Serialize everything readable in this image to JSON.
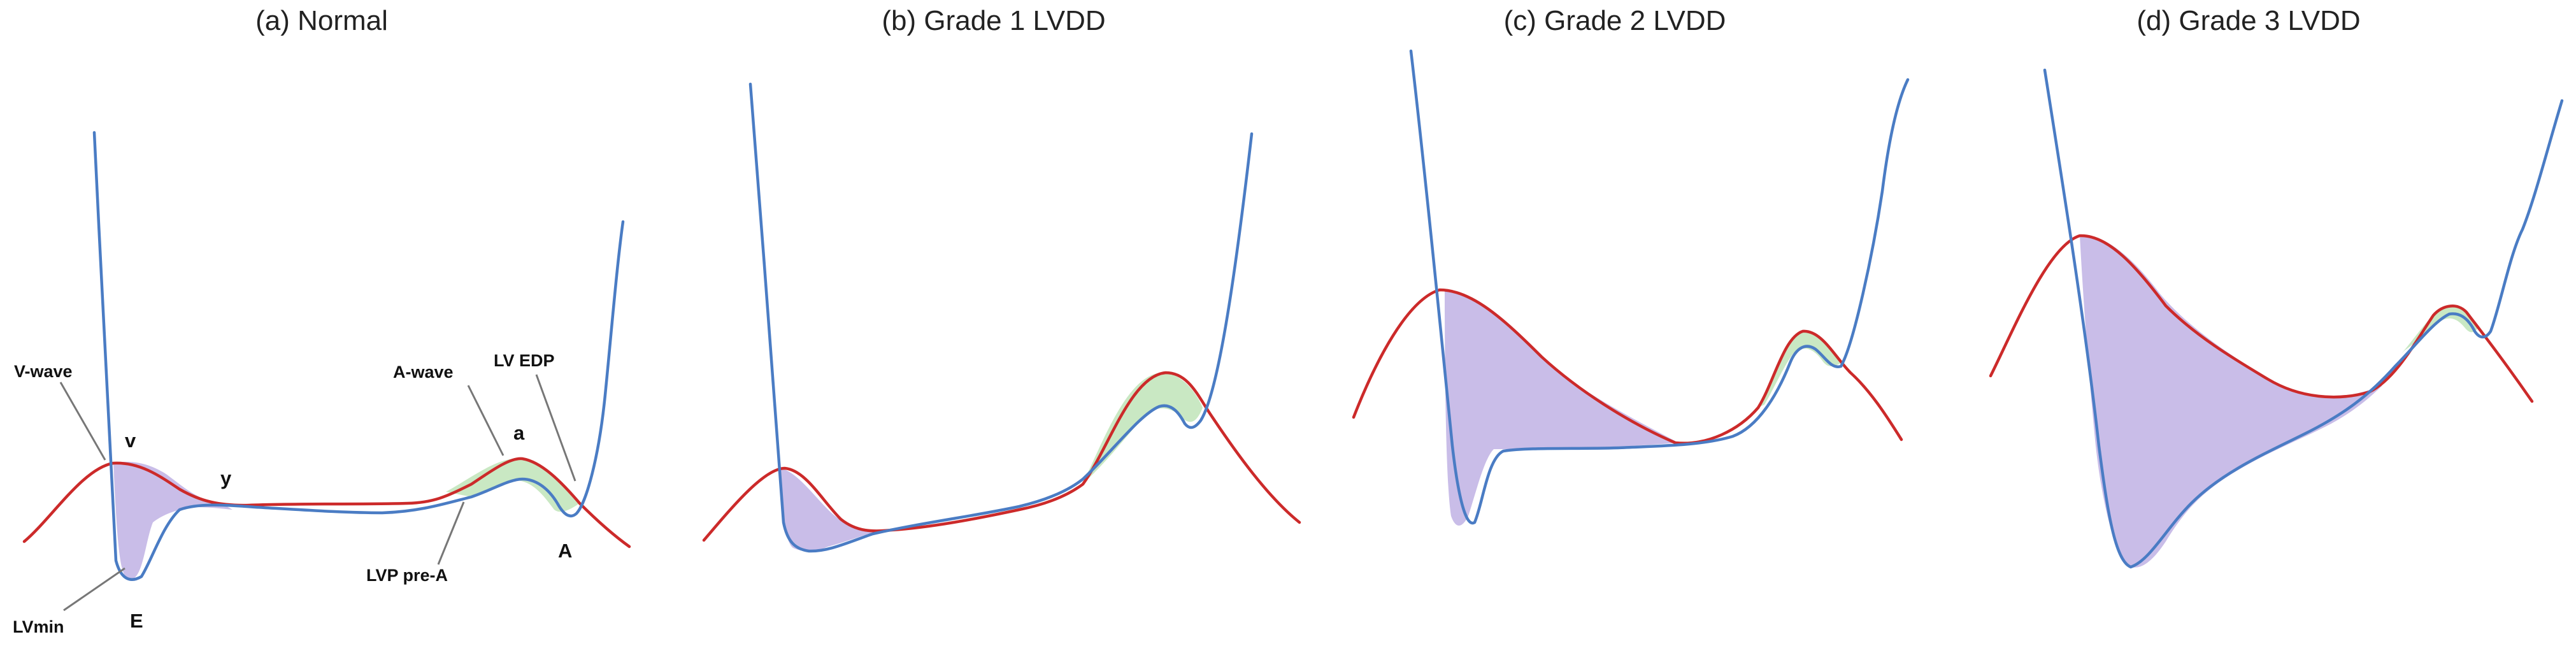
{
  "panels": [
    {
      "id": "a",
      "title": "(a) Normal",
      "annotations": {
        "v_wave": "V-wave",
        "v": "v",
        "y": "y",
        "a_wave": "A-wave",
        "a": "a",
        "lv_edp": "LV EDP",
        "lvp_pre_a": "LVP pre-A",
        "lvmin": "LVmin",
        "e": "E",
        "a_upper": "A"
      }
    },
    {
      "id": "b",
      "title": "(b) Grade 1 LVDD"
    },
    {
      "id": "c",
      "title": "(c) Grade 2 LVDD"
    },
    {
      "id": "d",
      "title": "(d) Grade 3 LVDD"
    }
  ],
  "colors": {
    "la_pressure_curve": "#cc2a2a",
    "lv_pressure_curve": "#4a7cc4",
    "early_filling_area": "#c9bde8",
    "atrial_filling_area": "#c9e8c3",
    "leader_line": "#777777"
  }
}
